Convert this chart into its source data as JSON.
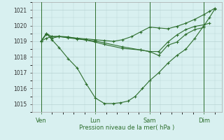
{
  "xlabel": "Pression niveau de la mer( hPa )",
  "bg_color": "#d8f0f0",
  "grid_color": "#b8d4d4",
  "line_color": "#2d6e2d",
  "tick_color": "#2d6e2d",
  "ylim": [
    1014.5,
    1021.5
  ],
  "yticks": [
    1015,
    1016,
    1017,
    1018,
    1019,
    1020,
    1021
  ],
  "xtick_labels": [
    "Ven",
    "Lun",
    "Sam",
    "Dim"
  ],
  "xtick_positions": [
    0,
    30,
    60,
    90
  ],
  "vline_positions": [
    0,
    30,
    60,
    90
  ],
  "xlim": [
    -5,
    100
  ],
  "series": [
    {
      "x": [
        0,
        3,
        6,
        10,
        15,
        20,
        25,
        30,
        35,
        40,
        45,
        50,
        55,
        60,
        65,
        70,
        75,
        80,
        85,
        90,
        93,
        96
      ],
      "y": [
        1019.0,
        1019.5,
        1019.3,
        1019.3,
        1019.25,
        1019.2,
        1019.15,
        1019.1,
        1019.05,
        1019.0,
        1019.1,
        1019.3,
        1019.6,
        1019.9,
        1019.85,
        1019.8,
        1019.95,
        1020.15,
        1020.4,
        1020.7,
        1020.9,
        1021.1
      ]
    },
    {
      "x": [
        0,
        3,
        6,
        10,
        15,
        20,
        25,
        30,
        35,
        40,
        44,
        48,
        52,
        56,
        60,
        65,
        70,
        75,
        80,
        85,
        90,
        93,
        96
      ],
      "y": [
        1019.0,
        1019.5,
        1019.1,
        1018.6,
        1017.9,
        1017.3,
        1016.3,
        1015.4,
        1015.05,
        1015.05,
        1015.1,
        1015.2,
        1015.5,
        1016.0,
        1016.5,
        1017.0,
        1017.6,
        1018.1,
        1018.5,
        1019.2,
        1020.0,
        1020.5,
        1021.05
      ]
    },
    {
      "x": [
        0,
        3,
        6,
        10,
        15,
        20,
        25,
        30,
        35,
        45,
        55,
        60,
        65,
        70,
        75,
        80,
        85,
        90,
        93
      ],
      "y": [
        1019.0,
        1019.45,
        1019.2,
        1019.3,
        1019.22,
        1019.15,
        1019.08,
        1018.95,
        1018.8,
        1018.55,
        1018.45,
        1018.35,
        1018.35,
        1018.95,
        1019.4,
        1019.75,
        1019.95,
        1020.05,
        1020.15
      ]
    },
    {
      "x": [
        0,
        3,
        6,
        10,
        15,
        20,
        25,
        30,
        35,
        45,
        55,
        60,
        65,
        70,
        75,
        80,
        85,
        90
      ],
      "y": [
        1019.0,
        1019.2,
        1019.3,
        1019.32,
        1019.28,
        1019.18,
        1019.08,
        1019.02,
        1018.9,
        1018.65,
        1018.45,
        1018.35,
        1018.1,
        1018.75,
        1018.95,
        1019.45,
        1019.75,
        1019.88
      ]
    }
  ]
}
